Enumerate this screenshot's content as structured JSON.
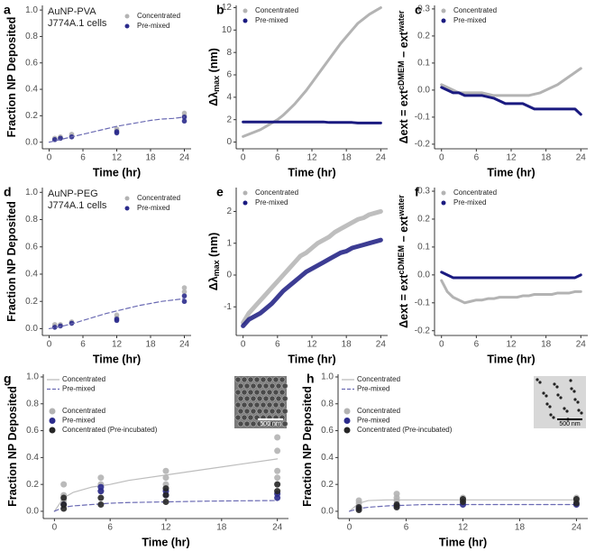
{
  "chart_data": [
    {
      "type": "scatter",
      "panel_label": "a",
      "annotation": [
        "AuNP-PVA",
        "J774A.1 cells"
      ],
      "ylabel": [
        {
          "text": "Fraction NP Deposited"
        }
      ],
      "xlabel": "Time (hr)",
      "xlim": [
        -1.2,
        25.2
      ],
      "ylim": [
        -0.05,
        1.035
      ],
      "xticks": [
        0,
        6,
        12,
        18,
        24
      ],
      "yticks": [
        {
          "value": 0,
          "label": "0.0"
        },
        0.2,
        0.4,
        0.6,
        0.8,
        {
          "value": 1,
          "label": "1.0"
        }
      ],
      "legend": "top-right",
      "series": [
        {
          "name": "Concentrated",
          "color": "#b3b3b3",
          "x": [
            1,
            1,
            2,
            2,
            4,
            4,
            12,
            12,
            24,
            24
          ],
          "values": [
            0.02,
            0.03,
            0.03,
            0.04,
            0.05,
            0.06,
            0.09,
            0.1,
            0.2,
            0.22
          ]
        },
        {
          "name": "Pre-mixed",
          "color": "#2b2b8c",
          "x": [
            1,
            2,
            4,
            12,
            12,
            24,
            24
          ],
          "values": [
            0.02,
            0.03,
            0.04,
            0.07,
            0.08,
            0.16,
            0.19
          ]
        },
        {
          "style": "dashed",
          "color": "#6a6ab3",
          "x": [
            0,
            2,
            4,
            6,
            8,
            10,
            12,
            14,
            16,
            18,
            20,
            22,
            24
          ],
          "values": [
            0,
            0.02,
            0.04,
            0.06,
            0.08,
            0.1,
            0.12,
            0.135,
            0.15,
            0.165,
            0.175,
            0.18,
            0.19
          ]
        }
      ]
    },
    {
      "type": "line",
      "panel_label": "b",
      "ylabel": [
        {
          "text": "Δλ"
        },
        {
          "text": "max",
          "sub": true
        },
        {
          "text": " (nm)"
        }
      ],
      "xlabel": "Time (hr)",
      "xlim": [
        -1.2,
        25.2
      ],
      "ylim": [
        -0.6,
        12.2
      ],
      "xticks": [
        0,
        6,
        12,
        18,
        24
      ],
      "yticks": [
        0,
        2,
        4,
        6,
        8,
        10,
        12
      ],
      "legend": "top-left",
      "x": [
        0,
        1,
        2,
        3,
        4,
        5,
        6,
        7,
        8,
        9,
        10,
        11,
        12,
        13,
        14,
        15,
        16,
        17,
        18,
        19,
        20,
        21,
        22,
        23,
        24
      ],
      "series": [
        {
          "name": "Concentrated",
          "color": "#b3b3b3",
          "values": [
            0.5,
            0.7,
            0.9,
            1.1,
            1.4,
            1.7,
            2.0,
            2.4,
            2.9,
            3.4,
            4.0,
            4.6,
            5.3,
            6.0,
            6.7,
            7.4,
            8.1,
            8.8,
            9.4,
            10.0,
            10.6,
            11.0,
            11.4,
            11.7,
            12.0
          ]
        },
        {
          "name": "Pre-mixed",
          "color": "#1a1a80",
          "values": [
            1.8,
            1.8,
            1.8,
            1.8,
            1.8,
            1.8,
            1.8,
            1.8,
            1.8,
            1.8,
            1.8,
            1.8,
            1.8,
            1.8,
            1.8,
            1.75,
            1.75,
            1.75,
            1.75,
            1.75,
            1.7,
            1.7,
            1.7,
            1.7,
            1.7
          ]
        }
      ]
    },
    {
      "type": "line",
      "panel_label": "c",
      "ylabel": [
        {
          "text": "Δext = ext"
        },
        {
          "text": "cDMEM",
          "sup": true
        },
        {
          "text": " − ext"
        },
        {
          "text": "water",
          "sup": true
        }
      ],
      "xlabel": "Time (hr)",
      "xlim": [
        -1.2,
        25.2
      ],
      "ylim": [
        -0.217,
        0.313
      ],
      "xticks": [
        0,
        6,
        12,
        18,
        24
      ],
      "yticks": [
        -0.2,
        -0.1,
        {
          "value": 0,
          "label": "0.0"
        },
        0.1,
        0.2,
        0.3
      ],
      "legend": "top-left",
      "x": [
        0,
        1,
        2,
        3,
        4,
        5,
        6,
        7,
        8,
        9,
        10,
        11,
        12,
        13,
        14,
        15,
        16,
        17,
        18,
        19,
        20,
        21,
        22,
        23,
        24
      ],
      "series": [
        {
          "name": "Concentrated",
          "color": "#b3b3b3",
          "values": [
            0.02,
            0.01,
            0.0,
            -0.01,
            -0.01,
            -0.01,
            -0.01,
            -0.01,
            -0.015,
            -0.02,
            -0.02,
            -0.02,
            -0.02,
            -0.02,
            -0.02,
            -0.02,
            -0.015,
            -0.01,
            0.0,
            0.01,
            0.02,
            0.035,
            0.05,
            0.065,
            0.08
          ]
        },
        {
          "name": "Pre-mixed",
          "color": "#1a1a80",
          "values": [
            0.01,
            0.0,
            -0.01,
            -0.01,
            -0.02,
            -0.02,
            -0.02,
            -0.02,
            -0.025,
            -0.03,
            -0.04,
            -0.05,
            -0.05,
            -0.05,
            -0.05,
            -0.06,
            -0.07,
            -0.07,
            -0.07,
            -0.07,
            -0.07,
            -0.07,
            -0.07,
            -0.07,
            -0.09
          ]
        }
      ]
    },
    {
      "type": "scatter",
      "panel_label": "d",
      "annotation": [
        "AuNP-PEG",
        "J774A.1 cells"
      ],
      "ylabel": [
        {
          "text": "Fraction NP Deposited"
        }
      ],
      "xlabel": "Time (hr)",
      "xlim": [
        -1.2,
        25.2
      ],
      "ylim": [
        -0.05,
        1.035
      ],
      "xticks": [
        0,
        6,
        12,
        18,
        24
      ],
      "yticks": [
        {
          "value": 0,
          "label": "0.0"
        },
        0.2,
        0.4,
        0.6,
        0.8,
        {
          "value": 1,
          "label": "1.0"
        }
      ],
      "legend": "top-right",
      "series": [
        {
          "name": "Concentrated",
          "color": "#b3b3b3",
          "x": [
            1,
            1,
            2,
            4,
            4,
            12,
            12,
            24,
            24
          ],
          "values": [
            0.02,
            0.03,
            0.03,
            0.04,
            0.05,
            0.08,
            0.1,
            0.27,
            0.3
          ]
        },
        {
          "name": "Pre-mixed",
          "color": "#2b2b8c",
          "x": [
            1,
            2,
            4,
            12,
            12,
            24,
            24
          ],
          "values": [
            0.01,
            0.02,
            0.04,
            0.06,
            0.07,
            0.2,
            0.24
          ]
        },
        {
          "style": "dashed",
          "color": "#6a6ab3",
          "x": [
            0,
            2,
            4,
            6,
            8,
            10,
            12,
            14,
            16,
            18,
            20,
            22,
            24
          ],
          "values": [
            0,
            0.015,
            0.035,
            0.06,
            0.085,
            0.11,
            0.13,
            0.15,
            0.17,
            0.185,
            0.2,
            0.21,
            0.22
          ]
        }
      ]
    },
    {
      "type": "line",
      "panel_label": "e",
      "ylabel": [
        {
          "text": "Δλ"
        },
        {
          "text": "max",
          "sub": true
        },
        {
          "text": " (nm)"
        }
      ],
      "xlabel": "Time (hr)",
      "xlim": [
        -1.2,
        25.2
      ],
      "ylim": [
        -1.9,
        2.75
      ],
      "xticks": [
        0,
        6,
        12,
        18,
        24
      ],
      "yticks": [
        -1,
        0,
        1,
        2
      ],
      "legend": "top-left",
      "x": [
        0,
        1,
        2,
        3,
        4,
        5,
        6,
        7,
        8,
        9,
        10,
        11,
        12,
        13,
        14,
        15,
        16,
        17,
        18,
        19,
        20,
        21,
        22,
        23,
        24
      ],
      "series": [
        {
          "name": "Concentrated",
          "color": "#b3b3b3",
          "values": [
            -1.5,
            -1.2,
            -1.0,
            -0.8,
            -0.6,
            -0.4,
            -0.2,
            0.0,
            0.2,
            0.4,
            0.6,
            0.7,
            0.85,
            1.0,
            1.1,
            1.2,
            1.35,
            1.45,
            1.55,
            1.65,
            1.75,
            1.8,
            1.9,
            1.95,
            2.0
          ]
        },
        {
          "name": "Pre-mixed",
          "color": "#1a1a80",
          "values": [
            -1.6,
            -1.4,
            -1.3,
            -1.2,
            -1.05,
            -0.9,
            -0.7,
            -0.5,
            -0.35,
            -0.2,
            -0.05,
            0.1,
            0.2,
            0.3,
            0.4,
            0.5,
            0.6,
            0.7,
            0.75,
            0.85,
            0.9,
            0.95,
            1.0,
            1.05,
            1.1
          ]
        }
      ]
    },
    {
      "type": "line",
      "panel_label": "f",
      "ylabel": [
        {
          "text": "Δext = ext"
        },
        {
          "text": "cDMEM",
          "sup": true
        },
        {
          "text": " − ext"
        },
        {
          "text": "water",
          "sup": true
        }
      ],
      "xlabel": "Time (hr)",
      "xlim": [
        -1.2,
        25.2
      ],
      "ylim": [
        -0.217,
        0.313
      ],
      "xticks": [
        0,
        6,
        12,
        18,
        24
      ],
      "yticks": [
        -0.2,
        -0.1,
        {
          "value": 0,
          "label": "0.0"
        },
        0.1,
        0.2,
        0.3
      ],
      "legend": "top-left",
      "x": [
        0,
        1,
        2,
        3,
        4,
        5,
        6,
        7,
        8,
        9,
        10,
        11,
        12,
        13,
        14,
        15,
        16,
        17,
        18,
        19,
        20,
        21,
        22,
        23,
        24
      ],
      "series": [
        {
          "name": "Concentrated",
          "color": "#b3b3b3",
          "values": [
            -0.02,
            -0.06,
            -0.08,
            -0.09,
            -0.1,
            -0.095,
            -0.09,
            -0.09,
            -0.085,
            -0.085,
            -0.08,
            -0.08,
            -0.08,
            -0.08,
            -0.075,
            -0.075,
            -0.07,
            -0.07,
            -0.07,
            -0.07,
            -0.065,
            -0.065,
            -0.065,
            -0.06,
            -0.06
          ]
        },
        {
          "name": "Pre-mixed",
          "color": "#1a1a80",
          "values": [
            0.01,
            0.0,
            -0.01,
            -0.01,
            -0.01,
            -0.01,
            -0.01,
            -0.01,
            -0.01,
            -0.01,
            -0.01,
            -0.01,
            -0.01,
            -0.01,
            -0.01,
            -0.01,
            -0.01,
            -0.01,
            -0.01,
            -0.01,
            -0.01,
            -0.01,
            -0.01,
            -0.01,
            0.0
          ]
        }
      ]
    },
    {
      "type": "scatter",
      "panel_label": "g",
      "scale_bar": "500 nm",
      "ylabel": [
        {
          "text": "Fraction NP Deposited"
        }
      ],
      "xlabel": "Time (hr)",
      "xlim": [
        -1.2,
        25.2
      ],
      "ylim": [
        -0.054,
        1.02
      ],
      "xticks": [
        0,
        6,
        12,
        18,
        24
      ],
      "yticks": [
        {
          "value": 0,
          "label": "0.0"
        },
        0.2,
        0.4,
        0.6,
        0.8,
        {
          "value": 1,
          "label": "1.0"
        }
      ],
      "legend": "top-left",
      "series": [
        {
          "name": "Concentrated",
          "style": "solid",
          "color": "#bdbdbd",
          "x": [
            0,
            1,
            2,
            4,
            6,
            8,
            12,
            16,
            20,
            24
          ],
          "values": [
            0,
            0.1,
            0.14,
            0.18,
            0.2,
            0.23,
            0.27,
            0.31,
            0.35,
            0.39
          ]
        },
        {
          "name": "Pre-mixed",
          "style": "dashed",
          "color": "#6a6ab3",
          "x": [
            0,
            1,
            2,
            4,
            6,
            8,
            12,
            16,
            20,
            24
          ],
          "values": [
            0,
            0.03,
            0.04,
            0.05,
            0.06,
            0.065,
            0.07,
            0.075,
            0.078,
            0.08
          ]
        },
        {
          "name": "Concentrated",
          "color": "#b3b3b3",
          "x": [
            1,
            1,
            1,
            5,
            5,
            5,
            12,
            12,
            12,
            24,
            24,
            24,
            24
          ],
          "values": [
            0.08,
            0.12,
            0.2,
            0.15,
            0.2,
            0.25,
            0.2,
            0.25,
            0.3,
            0.25,
            0.3,
            0.45,
            0.55
          ]
        },
        {
          "name": "Pre-mixed",
          "color": "#2b2b8c",
          "x": [
            1,
            5,
            5,
            12,
            12,
            24,
            24
          ],
          "values": [
            0.05,
            0.15,
            0.18,
            0.12,
            0.15,
            0.1,
            0.13
          ]
        },
        {
          "name": "Concentrated (Pre-incubated)",
          "color": "#262626",
          "x": [
            1,
            1,
            1,
            5,
            5,
            12,
            12,
            12,
            24,
            24
          ],
          "values": [
            0.02,
            0.05,
            0.1,
            0.05,
            0.1,
            0.07,
            0.12,
            0.17,
            0.15,
            0.2
          ]
        }
      ]
    },
    {
      "type": "scatter",
      "panel_label": "h",
      "scale_bar": "500 nm",
      "ylabel": [
        {
          "text": "Fraction NP Deposited"
        }
      ],
      "xlabel": "Time (hr)",
      "xlim": [
        -1.2,
        25.2
      ],
      "ylim": [
        -0.054,
        1.02
      ],
      "xticks": [
        0,
        6,
        12,
        18,
        24
      ],
      "yticks": [
        {
          "value": 0,
          "label": "0.0"
        },
        0.2,
        0.4,
        0.6,
        0.8,
        {
          "value": 1,
          "label": "1.0"
        }
      ],
      "legend": "top-left",
      "series": [
        {
          "name": "Concentrated",
          "style": "solid",
          "color": "#bdbdbd",
          "x": [
            0,
            1,
            2,
            4,
            6,
            8,
            12,
            16,
            20,
            24
          ],
          "values": [
            0,
            0.06,
            0.08,
            0.085,
            0.085,
            0.085,
            0.085,
            0.085,
            0.085,
            0.085
          ]
        },
        {
          "name": "Pre-mixed",
          "style": "dashed",
          "color": "#6a6ab3",
          "x": [
            0,
            1,
            2,
            4,
            6,
            8,
            12,
            16,
            20,
            24
          ],
          "values": [
            0,
            0.02,
            0.03,
            0.04,
            0.045,
            0.05,
            0.05,
            0.05,
            0.05,
            0.05
          ]
        },
        {
          "name": "Concentrated",
          "color": "#b3b3b3",
          "x": [
            1,
            1,
            5,
            5,
            5,
            12,
            12,
            24,
            24
          ],
          "values": [
            0.06,
            0.08,
            0.08,
            0.1,
            0.13,
            0.08,
            0.1,
            0.08,
            0.1
          ]
        },
        {
          "name": "Pre-mixed",
          "color": "#2b2b8c",
          "x": [
            1,
            5,
            12,
            24
          ],
          "values": [
            0.02,
            0.04,
            0.05,
            0.05
          ]
        },
        {
          "name": "Concentrated (Pre-incubated)",
          "color": "#262626",
          "x": [
            1,
            1,
            5,
            5,
            12,
            12,
            24,
            24
          ],
          "values": [
            0.01,
            0.03,
            0.03,
            0.05,
            0.07,
            0.09,
            0.06,
            0.09
          ]
        }
      ]
    }
  ]
}
